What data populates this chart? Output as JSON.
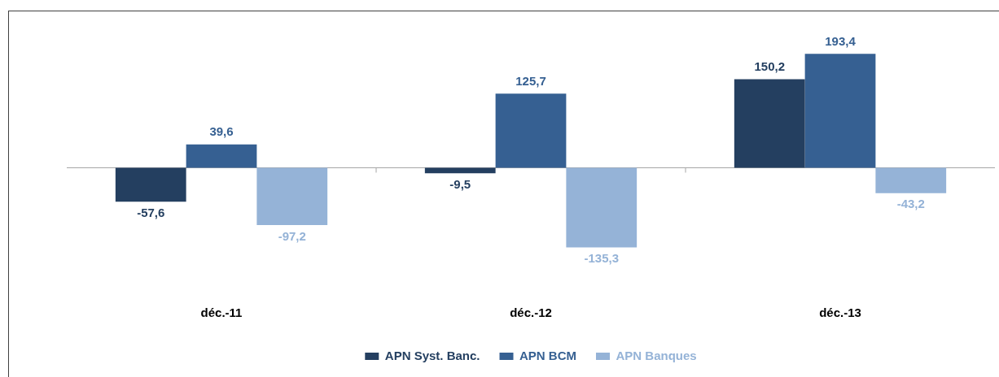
{
  "chart_data": {
    "type": "bar",
    "categories": [
      "déc.-11",
      "déc.-12",
      "déc.-13"
    ],
    "series": [
      {
        "name": "APN Syst. Banc.",
        "color": "#243f60",
        "values": [
          -57.6,
          -9.5,
          150.2
        ],
        "value_labels": [
          "-57,6",
          "-9,5",
          "150,2"
        ]
      },
      {
        "name": "APN BCM",
        "color": "#366092",
        "values": [
          39.6,
          125.7,
          193.4
        ],
        "value_labels": [
          "39,6",
          "125,7",
          "193,4"
        ]
      },
      {
        "name": "APN Banques",
        "color": "#95b3d7",
        "values": [
          -97.2,
          -135.3,
          -43.2
        ],
        "value_labels": [
          "-97,2",
          "-135,3",
          "-43,2"
        ]
      }
    ],
    "legend": "bottom",
    "tick_labels": "x"
  }
}
